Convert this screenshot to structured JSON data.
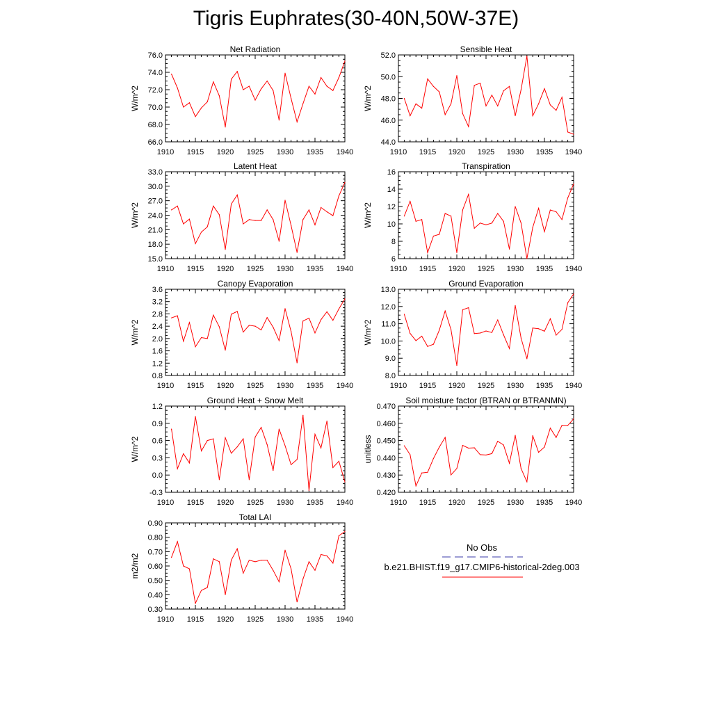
{
  "page": {
    "title": "Tigris Euphrates(30-40N,50W-37E)"
  },
  "legend": {
    "entries": [
      {
        "label": "No Obs",
        "color": "#3a3aa8",
        "style": "dashed"
      },
      {
        "label": "b.e21.BHIST.f19_g17.CMIP6-historical-2deg.003",
        "color": "#ff0000",
        "style": "solid"
      }
    ]
  },
  "chart_data": [
    {
      "type": "line",
      "title": "Net Radiation",
      "ylabel": "W/m^2",
      "xlabel": "",
      "xlim": [
        1910,
        1940
      ],
      "ylim": [
        66,
        76
      ],
      "yticks": [
        "76.0",
        "74.0",
        "72.0",
        "70.0",
        "68.0",
        "66.0"
      ],
      "xticks": [
        "1910",
        "1915",
        "1920",
        "1925",
        "1930",
        "1935",
        "1940"
      ],
      "x": [
        1911,
        1912,
        1913,
        1914,
        1915,
        1916,
        1917,
        1918,
        1919,
        1920,
        1921,
        1922,
        1923,
        1924,
        1925,
        1926,
        1927,
        1928,
        1929,
        1930,
        1931,
        1932,
        1933,
        1934,
        1935,
        1936,
        1937,
        1938,
        1939,
        1940
      ],
      "series": [
        {
          "color": "#ff0000",
          "values": [
            73.8,
            72.2,
            70.0,
            70.5,
            68.9,
            69.9,
            70.6,
            72.9,
            71.3,
            67.7,
            73.2,
            74.1,
            72.0,
            72.4,
            70.8,
            72.1,
            73.0,
            71.9,
            68.5,
            73.9,
            71.0,
            68.3,
            70.4,
            72.4,
            71.5,
            73.4,
            72.4,
            71.9,
            73.4,
            75.3
          ]
        }
      ]
    },
    {
      "type": "line",
      "title": "Sensible Heat",
      "ylabel": "W/m^2",
      "xlabel": "",
      "xlim": [
        1910,
        1940
      ],
      "ylim": [
        44,
        52
      ],
      "yticks": [
        "52.0",
        "50.0",
        "48.0",
        "46.0",
        "44.0"
      ],
      "xticks": [
        "1910",
        "1915",
        "1920",
        "1925",
        "1930",
        "1935",
        "1940"
      ],
      "x": [
        1911,
        1912,
        1913,
        1914,
        1915,
        1916,
        1917,
        1918,
        1919,
        1920,
        1921,
        1922,
        1923,
        1924,
        1925,
        1926,
        1927,
        1928,
        1929,
        1930,
        1931,
        1932,
        1933,
        1934,
        1935,
        1936,
        1937,
        1938,
        1939,
        1940
      ],
      "series": [
        {
          "color": "#ff0000",
          "values": [
            48.0,
            46.4,
            47.5,
            47.1,
            49.8,
            49.1,
            48.6,
            46.5,
            47.5,
            50.1,
            46.6,
            45.4,
            49.2,
            49.4,
            47.3,
            48.3,
            47.3,
            48.7,
            49.1,
            46.4,
            48.8,
            51.9,
            46.4,
            47.5,
            48.9,
            47.4,
            46.9,
            48.1,
            44.9,
            44.7
          ]
        }
      ]
    },
    {
      "type": "line",
      "title": "Latent Heat",
      "ylabel": "W/m^2",
      "xlabel": "",
      "xlim": [
        1910,
        1940
      ],
      "ylim": [
        15,
        33
      ],
      "yticks": [
        "33.0",
        "30.0",
        "27.0",
        "24.0",
        "21.0",
        "18.0",
        "15.0"
      ],
      "xticks": [
        "1910",
        "1915",
        "1920",
        "1925",
        "1930",
        "1935",
        "1940"
      ],
      "x": [
        1911,
        1912,
        1913,
        1914,
        1915,
        1916,
        1917,
        1918,
        1919,
        1920,
        1921,
        1922,
        1923,
        1924,
        1925,
        1926,
        1927,
        1928,
        1929,
        1930,
        1931,
        1932,
        1933,
        1934,
        1935,
        1936,
        1937,
        1938,
        1939,
        1940
      ],
      "series": [
        {
          "color": "#ff0000",
          "values": [
            25.1,
            25.9,
            22.2,
            23.2,
            18.1,
            20.5,
            21.6,
            25.9,
            24.1,
            16.9,
            26.3,
            28.2,
            22.2,
            23.1,
            22.9,
            22.9,
            25.1,
            23.1,
            18.6,
            27.1,
            21.9,
            16.3,
            23.1,
            25.1,
            22.0,
            25.6,
            24.7,
            23.9,
            28.0,
            30.8
          ]
        }
      ]
    },
    {
      "type": "line",
      "title": "Transpiration",
      "ylabel": "W/m^2",
      "xlabel": "",
      "xlim": [
        1910,
        1940
      ],
      "ylim": [
        6,
        16
      ],
      "yticks": [
        "16",
        "14",
        "12",
        "10",
        "8",
        "6"
      ],
      "xticks": [
        "1910",
        "1915",
        "1920",
        "1925",
        "1930",
        "1935",
        "1940"
      ],
      "x": [
        1911,
        1912,
        1913,
        1914,
        1915,
        1916,
        1917,
        1918,
        1919,
        1920,
        1921,
        1922,
        1923,
        1924,
        1925,
        1926,
        1927,
        1928,
        1929,
        1930,
        1931,
        1932,
        1933,
        1934,
        1935,
        1936,
        1937,
        1938,
        1939,
        1940
      ],
      "series": [
        {
          "color": "#ff0000",
          "values": [
            10.9,
            12.6,
            10.3,
            10.5,
            6.7,
            8.6,
            8.8,
            11.2,
            10.9,
            6.7,
            11.6,
            13.4,
            9.5,
            10.1,
            9.9,
            10.1,
            11.2,
            10.3,
            7.1,
            12.0,
            10.1,
            6.0,
            9.6,
            11.8,
            9.1,
            11.6,
            11.4,
            10.5,
            13.0,
            14.6
          ]
        }
      ]
    },
    {
      "type": "line",
      "title": "Canopy Evaporation",
      "ylabel": "W/m^2",
      "xlabel": "",
      "xlim": [
        1910,
        1940
      ],
      "ylim": [
        0.8,
        3.6
      ],
      "yticks": [
        "3.6",
        "3.2",
        "2.8",
        "2.4",
        "2.0",
        "1.6",
        "1.2",
        "0.8"
      ],
      "xticks": [
        "1910",
        "1915",
        "1920",
        "1925",
        "1930",
        "1935",
        "1940"
      ],
      "x": [
        1911,
        1912,
        1913,
        1914,
        1915,
        1916,
        1917,
        1918,
        1919,
        1920,
        1921,
        1922,
        1923,
        1924,
        1925,
        1926,
        1927,
        1928,
        1929,
        1930,
        1931,
        1932,
        1933,
        1934,
        1935,
        1936,
        1937,
        1938,
        1939,
        1940
      ],
      "series": [
        {
          "color": "#ff0000",
          "values": [
            2.67,
            2.74,
            1.91,
            2.52,
            1.73,
            2.03,
            2.0,
            2.76,
            2.38,
            1.62,
            2.79,
            2.88,
            2.21,
            2.43,
            2.4,
            2.28,
            2.68,
            2.37,
            1.93,
            2.97,
            2.23,
            1.21,
            2.57,
            2.66,
            2.18,
            2.61,
            2.87,
            2.59,
            2.96,
            3.29
          ]
        }
      ]
    },
    {
      "type": "line",
      "title": "Ground Evaporation",
      "ylabel": "W/m^2",
      "xlabel": "",
      "xlim": [
        1910,
        1940
      ],
      "ylim": [
        8,
        13
      ],
      "yticks": [
        "13.0",
        "12.0",
        "11.0",
        "10.0",
        "9.0",
        "8.0"
      ],
      "xticks": [
        "1910",
        "1915",
        "1920",
        "1925",
        "1930",
        "1935",
        "1940"
      ],
      "x": [
        1911,
        1912,
        1913,
        1914,
        1915,
        1916,
        1917,
        1918,
        1919,
        1920,
        1921,
        1922,
        1923,
        1924,
        1925,
        1926,
        1927,
        1928,
        1929,
        1930,
        1931,
        1932,
        1933,
        1934,
        1935,
        1936,
        1937,
        1938,
        1939,
        1940
      ],
      "series": [
        {
          "color": "#ff0000",
          "values": [
            11.55,
            10.44,
            10.02,
            10.28,
            9.68,
            9.81,
            10.63,
            11.74,
            10.66,
            8.58,
            11.81,
            11.93,
            10.43,
            10.46,
            10.58,
            10.49,
            11.22,
            10.36,
            9.56,
            12.06,
            10.17,
            8.97,
            10.75,
            10.71,
            10.57,
            11.29,
            10.34,
            10.67,
            12.22,
            12.73
          ]
        }
      ]
    },
    {
      "type": "line",
      "title": "Ground Heat + Snow Melt",
      "ylabel": "W/m^2",
      "xlabel": "",
      "xlim": [
        1910,
        1940
      ],
      "ylim": [
        -0.3,
        1.2
      ],
      "yticks": [
        "1.2",
        "0.9",
        "0.6",
        "0.3",
        "0.0",
        "-0.3"
      ],
      "xticks": [
        "1910",
        "1915",
        "1920",
        "1925",
        "1930",
        "1935",
        "1940"
      ],
      "x": [
        1911,
        1912,
        1913,
        1914,
        1915,
        1916,
        1917,
        1918,
        1919,
        1920,
        1921,
        1922,
        1923,
        1924,
        1925,
        1926,
        1927,
        1928,
        1929,
        1930,
        1931,
        1932,
        1933,
        1934,
        1935,
        1936,
        1937,
        1938,
        1939,
        1940
      ],
      "series": [
        {
          "color": "#ff0000",
          "values": [
            0.8,
            0.11,
            0.37,
            0.21,
            1.02,
            0.42,
            0.6,
            0.63,
            -0.08,
            0.65,
            0.38,
            0.49,
            0.63,
            -0.08,
            0.66,
            0.83,
            0.53,
            0.08,
            0.8,
            0.51,
            0.18,
            0.27,
            1.04,
            -0.27,
            0.71,
            0.47,
            0.94,
            0.13,
            0.24,
            -0.12
          ]
        }
      ]
    },
    {
      "type": "line",
      "title": "Soil moisture factor (BTRAN or BTRANMN)",
      "ylabel": "unitless",
      "xlabel": "",
      "xlim": [
        1910,
        1940
      ],
      "ylim": [
        0.42,
        0.47
      ],
      "yticks": [
        "0.470",
        "0.460",
        "0.450",
        "0.440",
        "0.430",
        "0.420"
      ],
      "xticks": [
        "1910",
        "1915",
        "1920",
        "1925",
        "1930",
        "1935",
        "1940"
      ],
      "x": [
        1911,
        1912,
        1913,
        1914,
        1915,
        1916,
        1917,
        1918,
        1919,
        1920,
        1921,
        1922,
        1923,
        1924,
        1925,
        1926,
        1927,
        1928,
        1929,
        1930,
        1931,
        1932,
        1933,
        1934,
        1935,
        1936,
        1937,
        1938,
        1939,
        1940
      ],
      "series": [
        {
          "color": "#ff0000",
          "values": [
            0.447,
            0.4418,
            0.4237,
            0.4312,
            0.4316,
            0.4396,
            0.4462,
            0.4518,
            0.4301,
            0.4338,
            0.4472,
            0.4456,
            0.4458,
            0.4418,
            0.4416,
            0.4424,
            0.4496,
            0.4474,
            0.4368,
            0.453,
            0.4338,
            0.4261,
            0.4528,
            0.4432,
            0.4462,
            0.4572,
            0.4518,
            0.4588,
            0.4588,
            0.4626
          ]
        }
      ]
    },
    {
      "type": "line",
      "title": "Total LAI",
      "ylabel": "m2/m2",
      "xlabel": "",
      "xlim": [
        1910,
        1940
      ],
      "ylim": [
        0.3,
        0.9
      ],
      "yticks": [
        "0.90",
        "0.80",
        "0.70",
        "0.60",
        "0.50",
        "0.40",
        "0.30"
      ],
      "xticks": [
        "1910",
        "1915",
        "1920",
        "1925",
        "1930",
        "1935",
        "1940"
      ],
      "x": [
        1911,
        1912,
        1913,
        1914,
        1915,
        1916,
        1917,
        1918,
        1919,
        1920,
        1921,
        1922,
        1923,
        1924,
        1925,
        1926,
        1927,
        1928,
        1929,
        1930,
        1931,
        1932,
        1933,
        1934,
        1935,
        1936,
        1937,
        1938,
        1939,
        1940
      ],
      "series": [
        {
          "color": "#ff0000",
          "values": [
            0.66,
            0.77,
            0.6,
            0.58,
            0.34,
            0.43,
            0.45,
            0.65,
            0.63,
            0.4,
            0.64,
            0.72,
            0.55,
            0.64,
            0.63,
            0.64,
            0.64,
            0.57,
            0.49,
            0.71,
            0.58,
            0.35,
            0.51,
            0.63,
            0.57,
            0.68,
            0.67,
            0.62,
            0.81,
            0.84
          ]
        }
      ]
    }
  ]
}
